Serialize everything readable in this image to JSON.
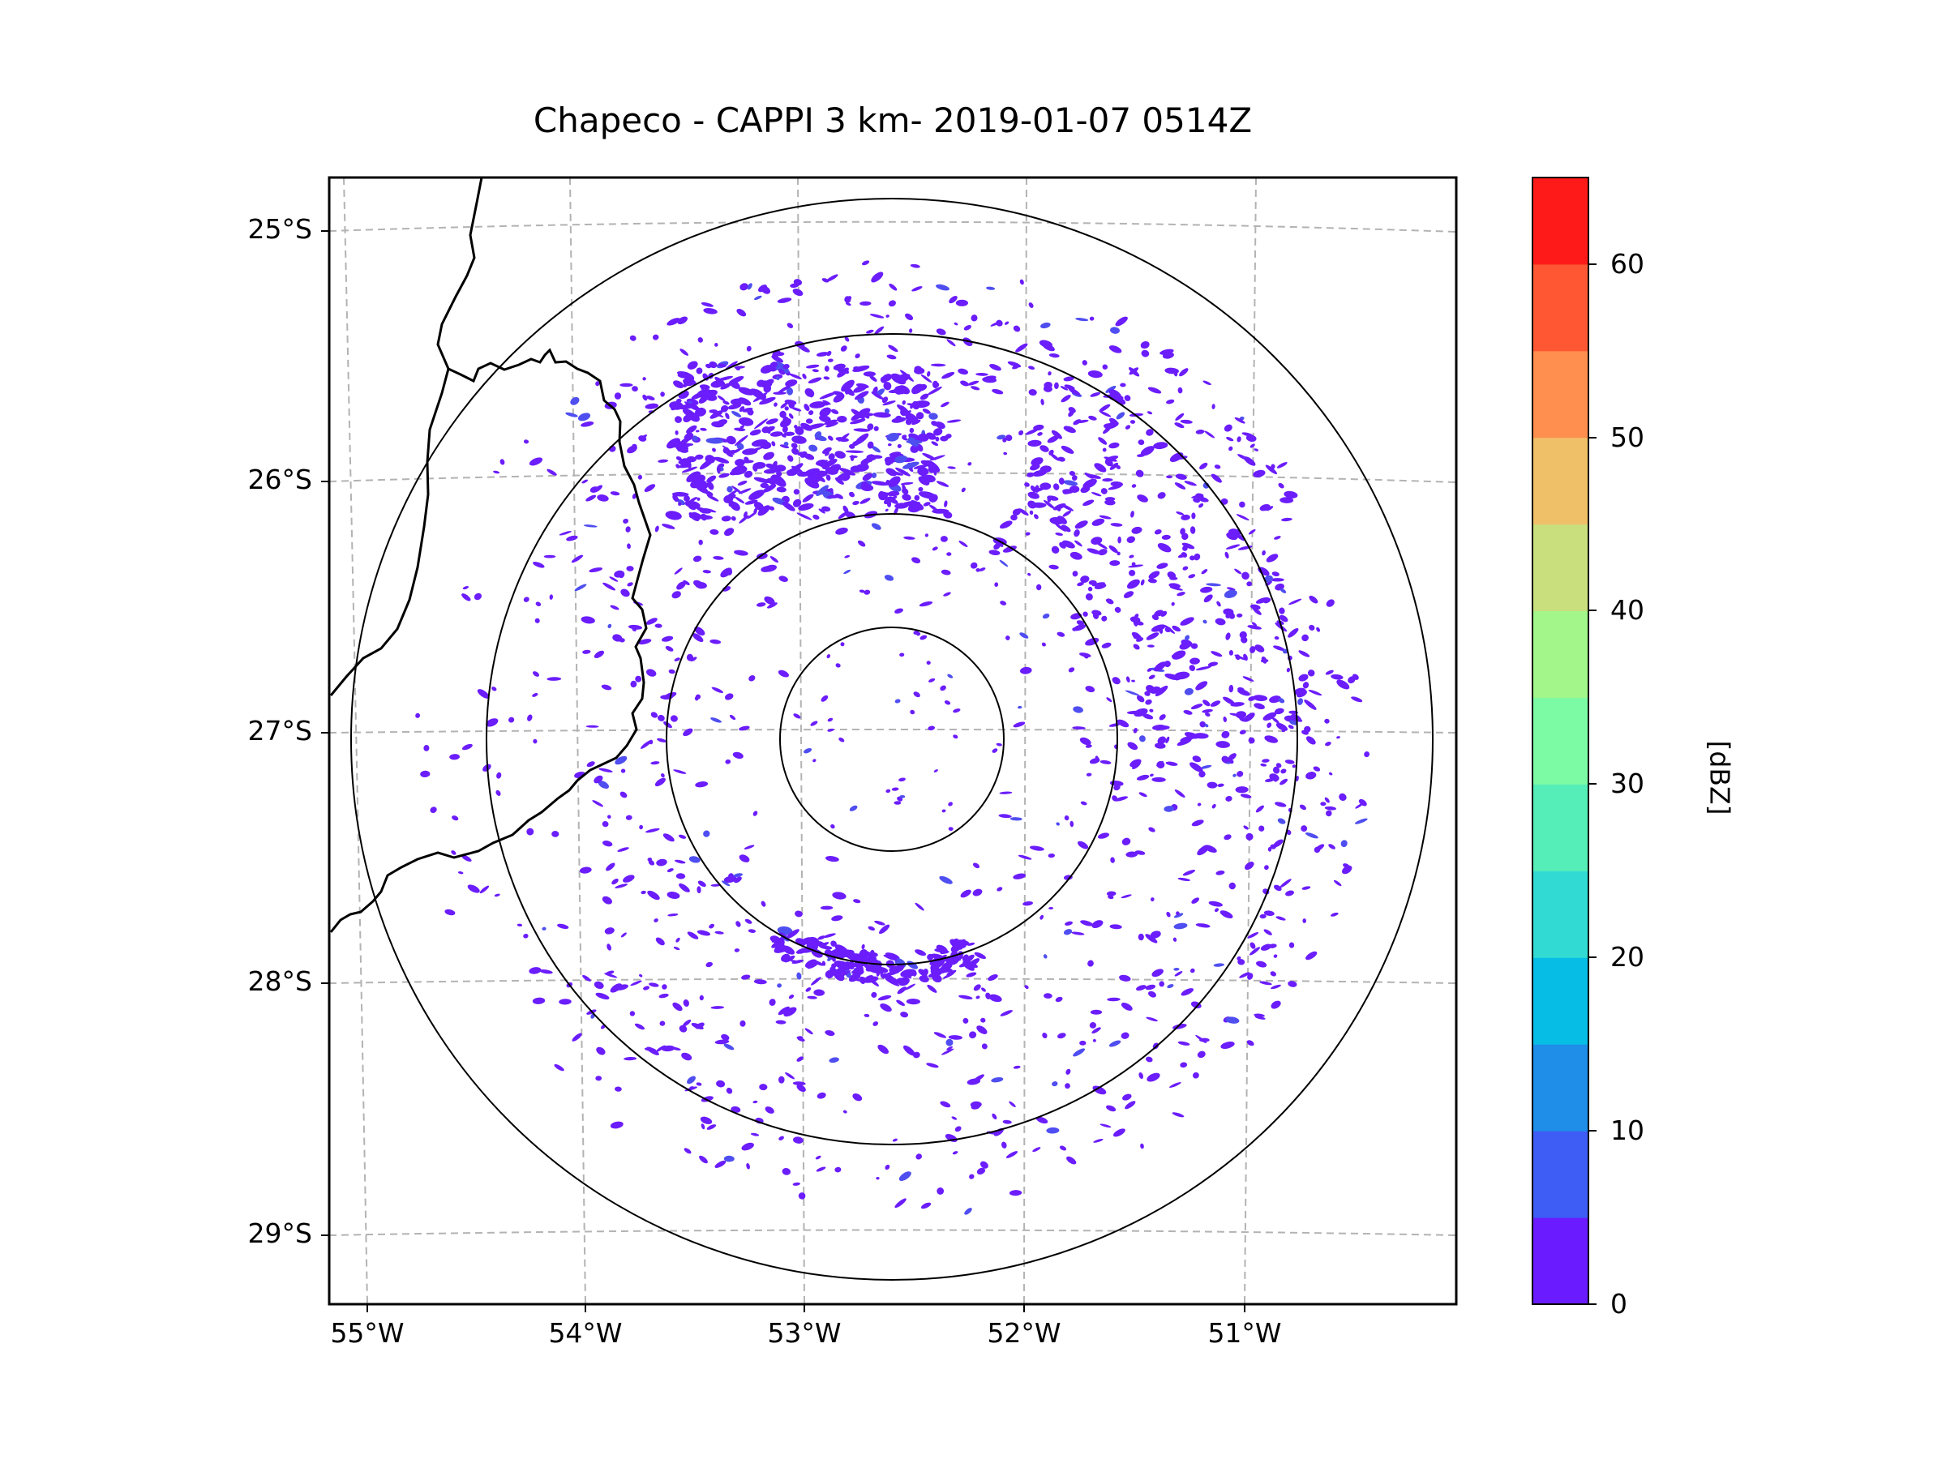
{
  "title": "Chapeco - CAPPI 3 km- 2019-01-07 0514Z",
  "map": {
    "lat_labels": [
      "25°S",
      "26°S",
      "27°S",
      "28°S",
      "29°S"
    ],
    "lon_labels": [
      "55°W",
      "54°W",
      "53°W",
      "52°W",
      "51°W"
    ],
    "radar_center": {
      "lon": -52.6,
      "lat": -27.03
    },
    "range_rings_km": [
      50,
      100,
      200,
      250
    ],
    "field": "reflectivity",
    "dominant_value_dbz": "0-5",
    "echo_coverage": "scattered weak echoes, denser to the north-northwest and along the 100 km ring to the south"
  },
  "colorbar": {
    "label": "[dBZ]",
    "ticks": [
      "0",
      "10",
      "20",
      "30",
      "40",
      "50",
      "60"
    ],
    "min": 0,
    "max": 65,
    "step": 5,
    "colors": [
      "#6a1bff",
      "#3d5df5",
      "#1e8ee8",
      "#06bde6",
      "#31dbd3",
      "#55eeb8",
      "#7cfba4",
      "#a2f68a",
      "#c9df7e",
      "#f0c069",
      "#ff8f4e",
      "#ff5733",
      "#ff1a1a"
    ]
  },
  "colors": {
    "echo": "#6b1dfb",
    "echo_light": "#4f4ef0",
    "grid": "#b3b3b3",
    "border": "#000000"
  }
}
